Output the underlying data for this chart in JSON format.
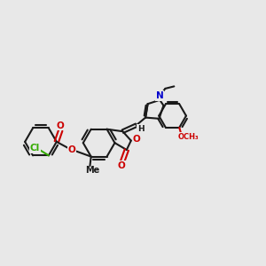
{
  "bg_color": "#e8e8e8",
  "bond_color": "#1a1a1a",
  "o_color": "#cc0000",
  "n_color": "#0000cc",
  "cl_color": "#33aa00",
  "lw": 1.5,
  "fs": 7.5,
  "fig_size": [
    3.0,
    3.0
  ],
  "dpi": 100,
  "xlim": [
    0,
    12
  ],
  "ylim": [
    0,
    10
  ]
}
